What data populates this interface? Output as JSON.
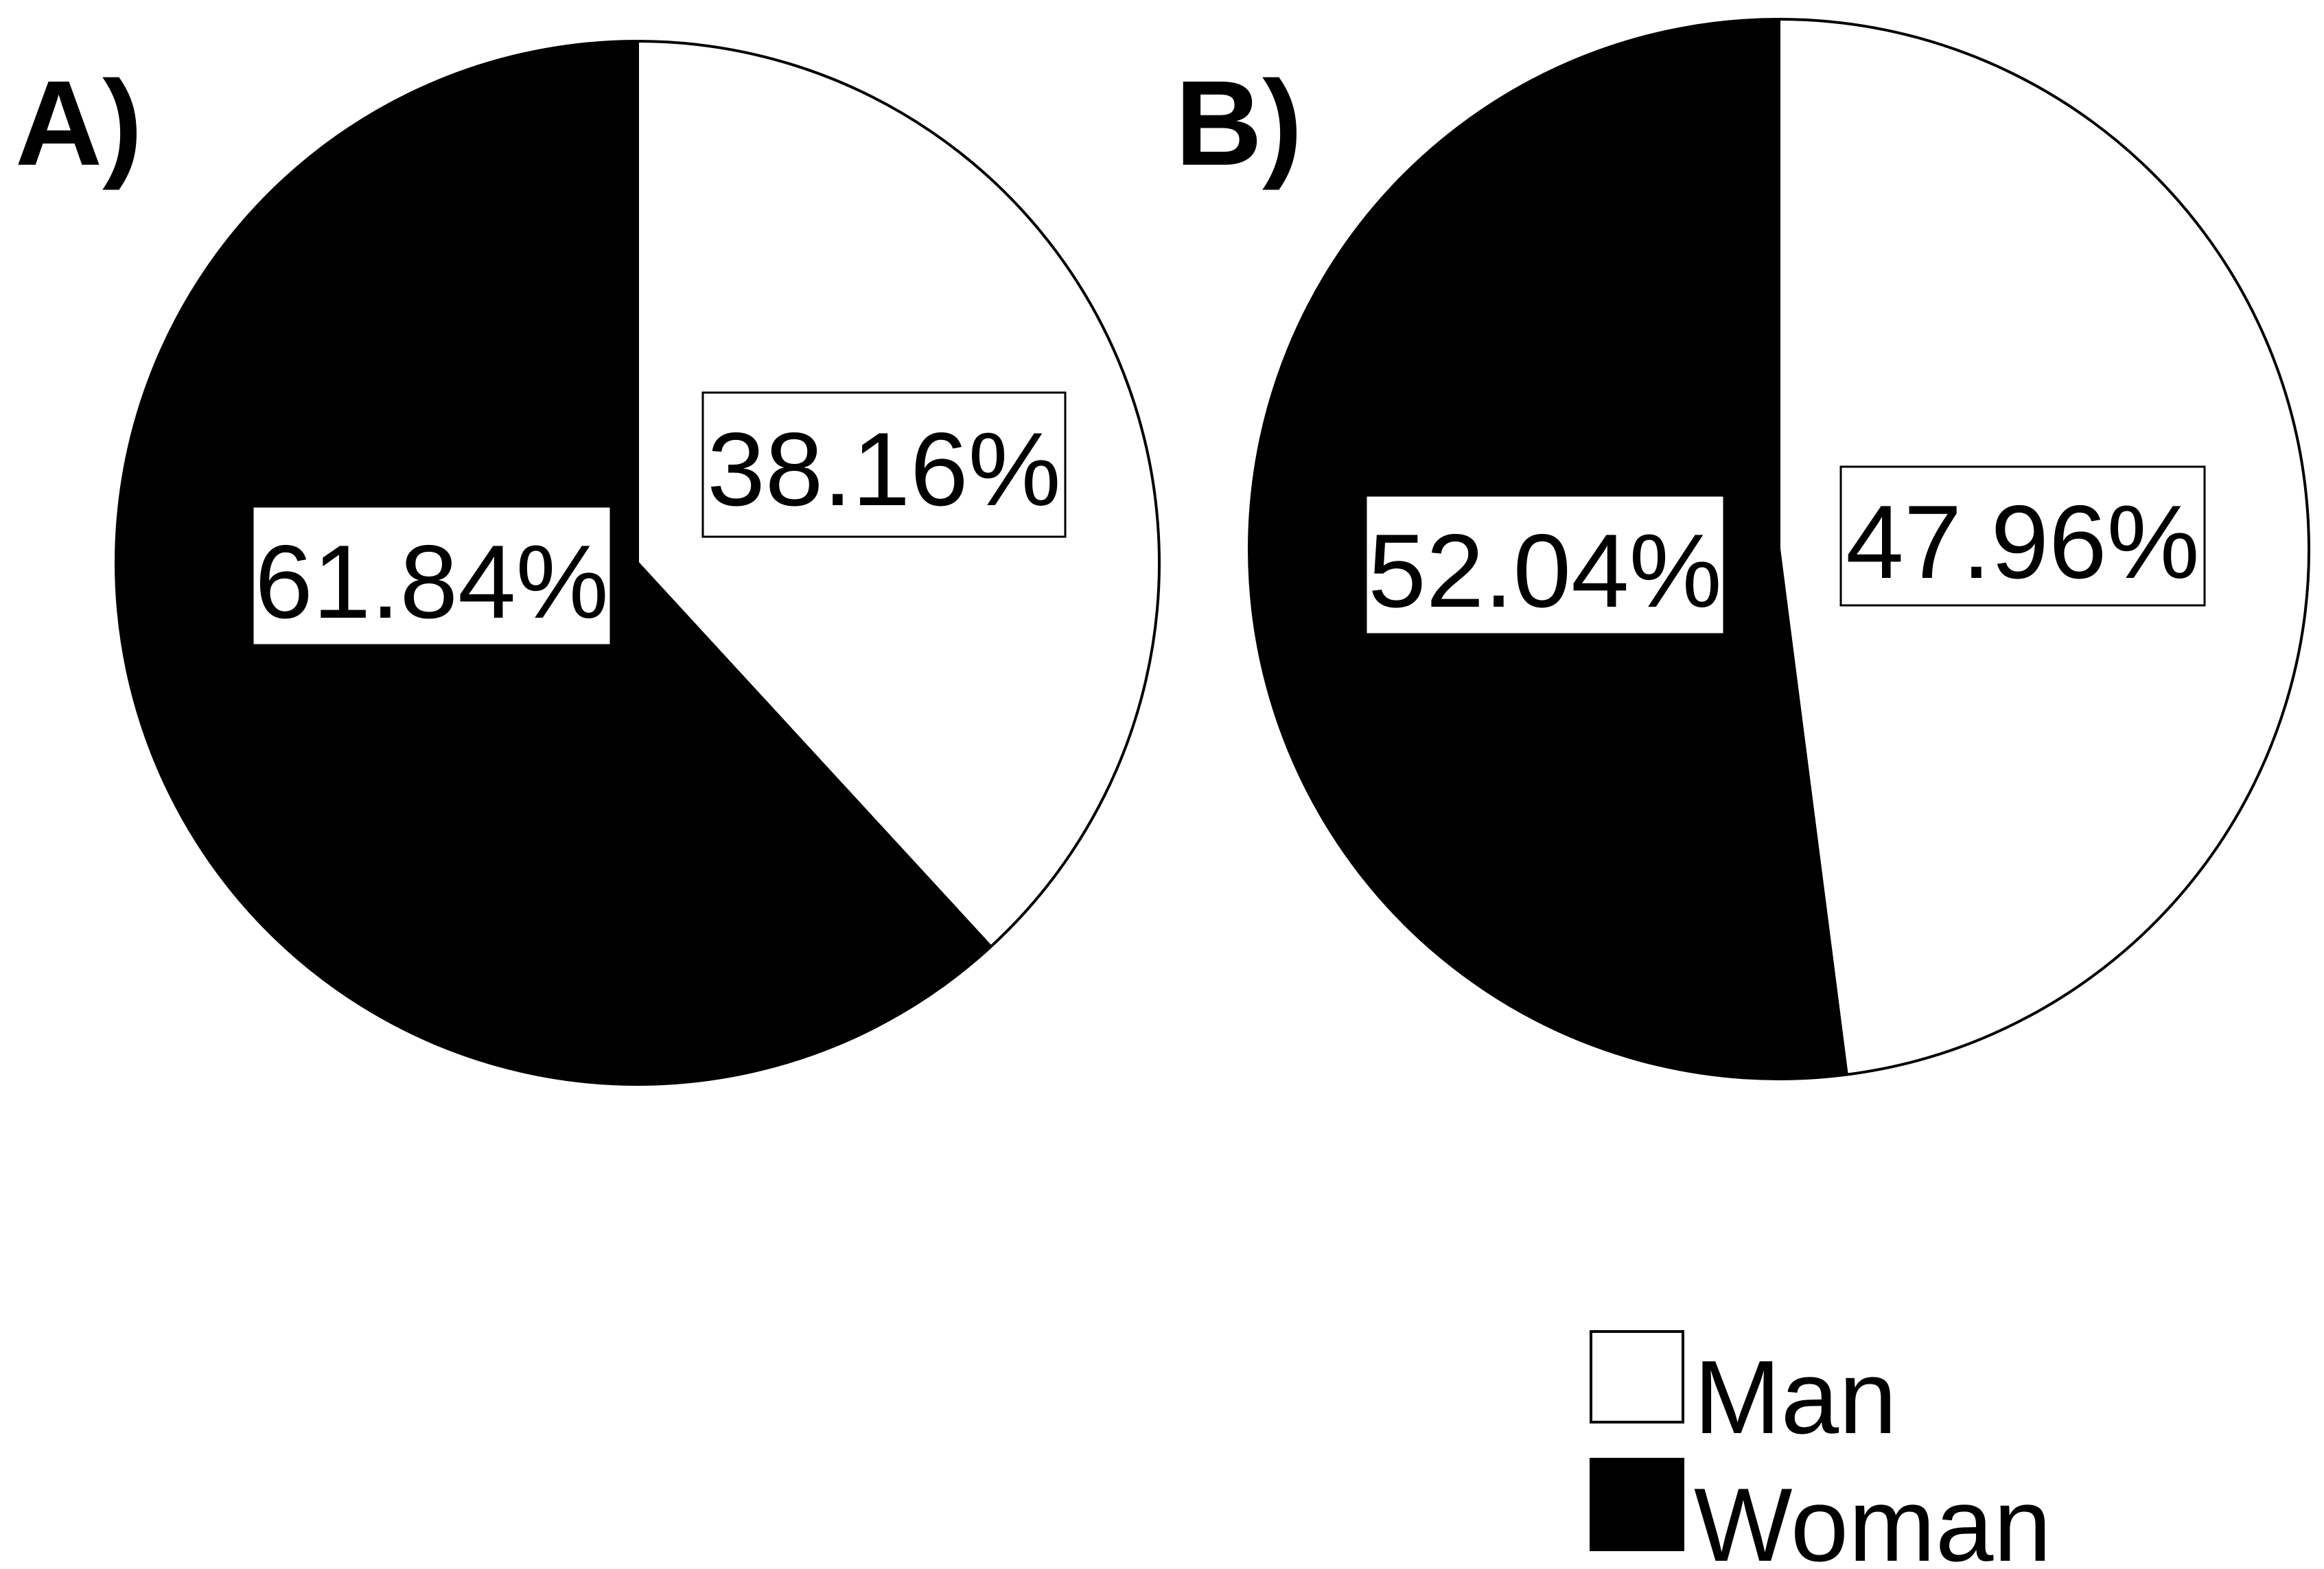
{
  "chart_data": [
    {
      "type": "pie",
      "panel_label": "A)",
      "slices": [
        {
          "name": "Man",
          "value": 38.16,
          "label": "38.16%",
          "color": "#ffffff"
        },
        {
          "name": "Woman",
          "value": 61.84,
          "label": "61.84%",
          "color": "#000000"
        }
      ]
    },
    {
      "type": "pie",
      "panel_label": "B)",
      "slices": [
        {
          "name": "Man",
          "value": 47.96,
          "label": "47.96%",
          "color": "#ffffff"
        },
        {
          "name": "Woman",
          "value": 52.04,
          "label": "52.04%",
          "color": "#000000"
        }
      ]
    }
  ],
  "legend": {
    "placement": "bottom-right",
    "items": [
      {
        "label": "Man",
        "color": "#ffffff"
      },
      {
        "label": "Woman",
        "color": "#000000"
      }
    ]
  }
}
